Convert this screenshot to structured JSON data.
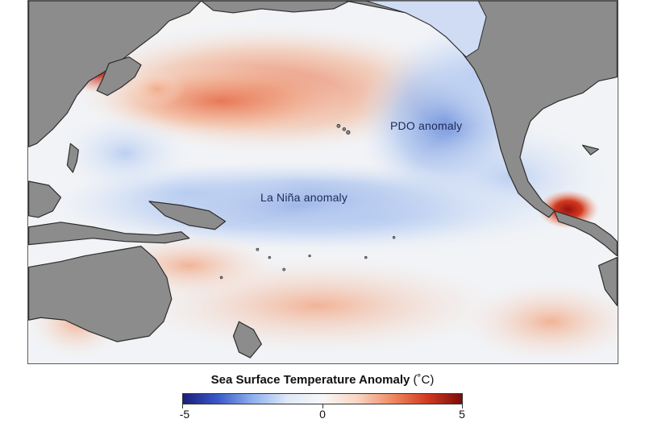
{
  "map": {
    "title": "Sea Surface Temperature Anomaly",
    "annotations": {
      "pdo": "PDO anomaly",
      "la_nina": "La Niña anomaly"
    },
    "colors": {
      "land": "#8c8c8c",
      "coast": "#2d2d2d",
      "ice_white": "#f4f4f4",
      "ocean_neutral": "#f1f3f6"
    }
  },
  "legend": {
    "title": "Sea Surface Temperature Anomaly",
    "unit": "(˚C)",
    "min_label": "-5",
    "mid_label": "0",
    "max_label": "5",
    "range": [
      -5,
      5
    ],
    "colormap": [
      "#1b1e78",
      "#3a59c9",
      "#8fb1ee",
      "#dfe9f8",
      "#f7f7f7",
      "#f8d6c2",
      "#ef8a64",
      "#d23a1f",
      "#7a0c0c"
    ]
  }
}
